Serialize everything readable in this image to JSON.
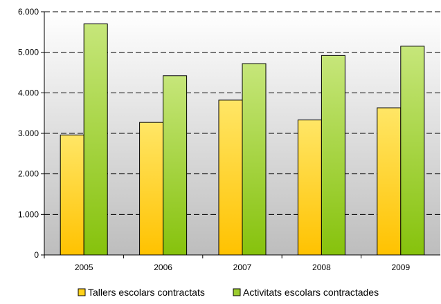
{
  "chart_data": {
    "type": "bar",
    "categories": [
      "2005",
      "2006",
      "2007",
      "2008",
      "2009"
    ],
    "series": [
      {
        "name": "Tallers escolars contractats",
        "values": [
          2960,
          3270,
          3820,
          3330,
          3630
        ],
        "color": "#ffd11a"
      },
      {
        "name": "Activitats escolars contractades",
        "values": [
          5700,
          4420,
          4720,
          4920,
          5150
        ],
        "color": "#9ccc2e"
      }
    ],
    "ylim": [
      0,
      6000
    ],
    "yticks": [
      {
        "value": 0,
        "label": "0"
      },
      {
        "value": 1000,
        "label": "1.000"
      },
      {
        "value": 2000,
        "label": "2.000"
      },
      {
        "value": 3000,
        "label": "3.000"
      },
      {
        "value": 4000,
        "label": "4.000"
      },
      {
        "value": 5000,
        "label": "5.000"
      },
      {
        "value": 6000,
        "label": "6.000"
      }
    ],
    "grid": true,
    "legend": "bottom",
    "title": "",
    "xlabel": "",
    "ylabel": ""
  }
}
